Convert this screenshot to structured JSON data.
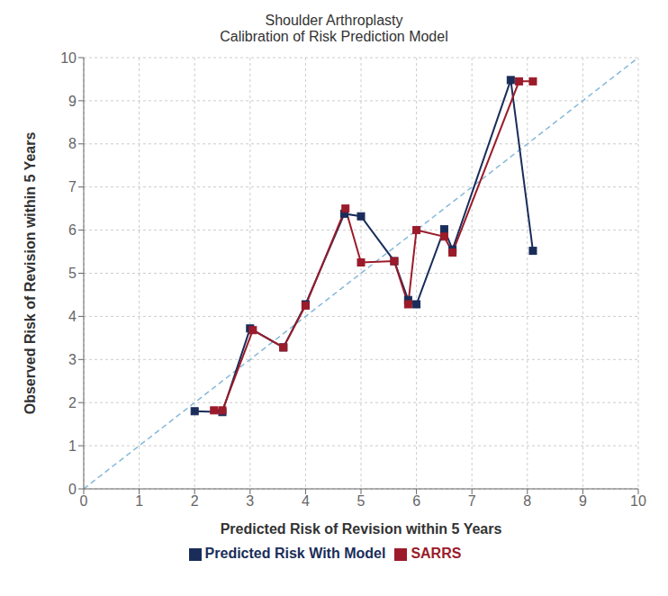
{
  "chart_data": {
    "type": "line",
    "title": "Shoulder Arthroplasty",
    "subtitle": "Calibration of Risk Prediction Model",
    "x_label": "Predicted Risk of Revision within 5 Years",
    "y_label": "Observed Risk of Revision within 5 Years",
    "xlim": [
      0,
      10
    ],
    "ylim": [
      0,
      10
    ],
    "xticks": [
      0,
      1,
      2,
      3,
      4,
      5,
      6,
      7,
      8,
      9,
      10
    ],
    "yticks": [
      0,
      1,
      2,
      3,
      4,
      5,
      6,
      7,
      8,
      9,
      10
    ],
    "grid": true,
    "legend": "bottom",
    "series": [
      {
        "color": "#85b8d9",
        "line_style": "dashed",
        "x": [
          0,
          10
        ],
        "values": [
          0,
          10
        ]
      },
      {
        "name": "Predicted Risk With Model",
        "color": "#1a2d5a",
        "marker": "square",
        "x": [
          2.0,
          2.5,
          3.0,
          3.6,
          4.0,
          4.7,
          5.0,
          5.6,
          5.85,
          6.0,
          6.5,
          6.65,
          7.7,
          8.1
        ],
        "values": [
          1.8,
          1.78,
          3.72,
          3.28,
          4.28,
          6.38,
          6.32,
          5.28,
          4.38,
          4.28,
          6.02,
          5.55,
          9.48,
          5.52
        ]
      },
      {
        "name": "SARRS",
        "color": "#9b1b2a",
        "marker": "square",
        "x": [
          2.35,
          2.5,
          3.05,
          3.6,
          4.0,
          4.72,
          5.0,
          5.6,
          5.85,
          6.0,
          6.5,
          6.65,
          7.85,
          8.1
        ],
        "values": [
          1.82,
          1.82,
          3.68,
          3.28,
          4.25,
          6.5,
          5.25,
          5.28,
          4.28,
          6.0,
          5.85,
          5.48,
          9.45,
          9.45
        ]
      }
    ]
  }
}
